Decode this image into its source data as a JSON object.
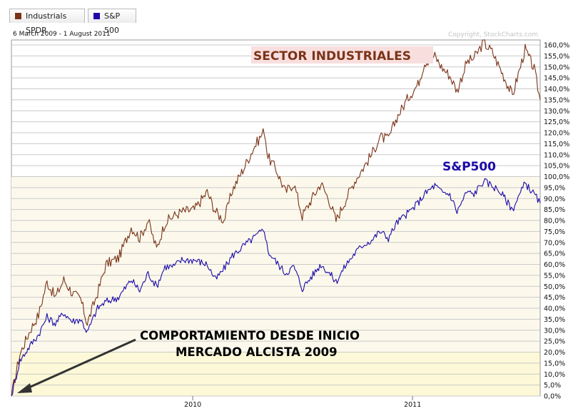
{
  "legend": [
    {
      "name": "Industrials SPDR",
      "color": "#7a3318"
    },
    {
      "name": "S&P 500",
      "color": "#1c0aa8"
    }
  ],
  "header": {
    "date_range": "6 March 2009 - 1 August 2011",
    "copyright": "Copyright, StockCharts.com"
  },
  "annotations": {
    "sector": "SECTOR INDUSTRIALES",
    "sp": "S&P500",
    "comportamiento_line1": "COMPORTAMIENTO DESDE INICIO",
    "comportamiento_line2": "MERCADO ALCISTA 2009"
  },
  "colors": {
    "industrials": "#7a3318",
    "sp500": "#1c0aa8",
    "highlight_band": "#fdf9d8",
    "upper_band": "#fcf9ec",
    "grid": "#c9c9c9",
    "sector_label_bg": "#f9dede",
    "arrow": "#333333"
  },
  "chart_data": {
    "type": "line",
    "x_tick_labels": [
      "2010",
      "2011"
    ],
    "y_tick_labels": [
      "0,0%",
      "5,0%",
      "10,0%",
      "15,0%",
      "20,0%",
      "25,0%",
      "30,0%",
      "35,0%",
      "40,0%",
      "45,0%",
      "50,0%",
      "55,0%",
      "60,0%",
      "65,0%",
      "70,0%",
      "75,0%",
      "80,0%",
      "85,0%",
      "90,0%",
      "95,0%",
      "100,0%",
      "105,0%",
      "110,0%",
      "115,0%",
      "120,0%",
      "125,0%",
      "130,0%",
      "135,0%",
      "140,0%",
      "145,0%",
      "150,0%",
      "155,0%",
      "160,0%"
    ],
    "ylim": [
      0,
      160
    ],
    "x_range": [
      "2009-03-06",
      "2011-08-01"
    ],
    "series": [
      {
        "name": "Industrials SPDR",
        "color": "#7a3318",
        "points": [
          [
            "2009-03-06",
            0
          ],
          [
            "2009-03-20",
            19
          ],
          [
            "2009-04-06",
            30
          ],
          [
            "2009-04-20",
            37
          ],
          [
            "2009-05-04",
            52
          ],
          [
            "2009-05-18",
            45
          ],
          [
            "2009-06-01",
            53
          ],
          [
            "2009-06-15",
            47
          ],
          [
            "2009-06-29",
            44
          ],
          [
            "2009-07-10",
            33
          ],
          [
            "2009-07-27",
            47
          ],
          [
            "2009-08-10",
            60
          ],
          [
            "2009-08-31",
            63
          ],
          [
            "2009-09-21",
            77
          ],
          [
            "2009-10-05",
            72
          ],
          [
            "2009-10-19",
            80
          ],
          [
            "2009-11-02",
            67
          ],
          [
            "2009-11-16",
            79
          ],
          [
            "2009-11-30",
            82
          ],
          [
            "2009-12-14",
            84
          ],
          [
            "2010-01-04",
            85
          ],
          [
            "2010-01-25",
            93
          ],
          [
            "2010-02-08",
            84
          ],
          [
            "2010-02-22",
            80
          ],
          [
            "2010-03-08",
            94
          ],
          [
            "2010-03-29",
            105
          ],
          [
            "2010-04-12",
            113
          ],
          [
            "2010-04-30",
            121
          ],
          [
            "2010-05-06",
            109
          ],
          [
            "2010-05-20",
            103
          ],
          [
            "2010-06-04",
            93
          ],
          [
            "2010-06-18",
            97
          ],
          [
            "2010-07-02",
            82
          ],
          [
            "2010-07-16",
            89
          ],
          [
            "2010-08-02",
            97
          ],
          [
            "2010-08-16",
            89
          ],
          [
            "2010-08-27",
            80
          ],
          [
            "2010-09-13",
            90
          ],
          [
            "2010-09-27",
            98
          ],
          [
            "2010-10-11",
            104
          ],
          [
            "2010-10-25",
            110
          ],
          [
            "2010-11-08",
            118
          ],
          [
            "2010-11-22",
            117
          ],
          [
            "2010-12-06",
            127
          ],
          [
            "2010-12-27",
            137
          ],
          [
            "2011-01-10",
            142
          ],
          [
            "2011-01-21",
            152
          ],
          [
            "2011-02-07",
            155
          ],
          [
            "2011-02-18",
            150
          ],
          [
            "2011-03-04",
            146
          ],
          [
            "2011-03-16",
            139
          ],
          [
            "2011-04-01",
            152
          ],
          [
            "2011-04-13",
            154
          ],
          [
            "2011-04-29",
            161
          ],
          [
            "2011-05-13",
            157
          ],
          [
            "2011-05-27",
            149
          ],
          [
            "2011-06-16",
            137
          ],
          [
            "2011-07-07",
            158
          ],
          [
            "2011-07-22",
            149
          ],
          [
            "2011-08-01",
            135
          ]
        ]
      },
      {
        "name": "S&P 500",
        "color": "#1c0aa8",
        "points": [
          [
            "2009-03-06",
            0
          ],
          [
            "2009-03-20",
            16
          ],
          [
            "2009-04-06",
            23
          ],
          [
            "2009-04-20",
            28
          ],
          [
            "2009-05-04",
            36
          ],
          [
            "2009-05-18",
            33
          ],
          [
            "2009-06-01",
            38
          ],
          [
            "2009-06-15",
            34
          ],
          [
            "2009-06-29",
            35
          ],
          [
            "2009-07-10",
            29
          ],
          [
            "2009-07-27",
            40
          ],
          [
            "2009-08-10",
            43
          ],
          [
            "2009-08-31",
            45
          ],
          [
            "2009-09-21",
            53
          ],
          [
            "2009-10-05",
            48
          ],
          [
            "2009-10-19",
            56
          ],
          [
            "2009-11-02",
            50
          ],
          [
            "2009-11-16",
            59
          ],
          [
            "2009-11-30",
            59
          ],
          [
            "2009-12-14",
            62
          ],
          [
            "2010-01-04",
            62
          ],
          [
            "2010-01-25",
            60
          ],
          [
            "2010-02-08",
            53
          ],
          [
            "2010-02-22",
            58
          ],
          [
            "2010-03-08",
            64
          ],
          [
            "2010-03-29",
            69
          ],
          [
            "2010-04-12",
            72
          ],
          [
            "2010-04-30",
            76
          ],
          [
            "2010-05-06",
            66
          ],
          [
            "2010-05-20",
            61
          ],
          [
            "2010-06-04",
            56
          ],
          [
            "2010-06-18",
            59
          ],
          [
            "2010-07-02",
            49
          ],
          [
            "2010-07-16",
            54
          ],
          [
            "2010-08-02",
            60
          ],
          [
            "2010-08-16",
            56
          ],
          [
            "2010-08-27",
            52
          ],
          [
            "2010-09-13",
            60
          ],
          [
            "2010-09-27",
            65
          ],
          [
            "2010-10-11",
            69
          ],
          [
            "2010-10-25",
            71
          ],
          [
            "2010-11-08",
            75
          ],
          [
            "2010-11-22",
            72
          ],
          [
            "2010-12-06",
            79
          ],
          [
            "2010-12-27",
            84
          ],
          [
            "2011-01-10",
            88
          ],
          [
            "2011-01-21",
            92
          ],
          [
            "2011-02-07",
            96
          ],
          [
            "2011-02-18",
            93
          ],
          [
            "2011-03-04",
            92
          ],
          [
            "2011-03-16",
            84
          ],
          [
            "2011-04-01",
            93
          ],
          [
            "2011-04-13",
            92
          ],
          [
            "2011-04-29",
            98
          ],
          [
            "2011-05-13",
            96
          ],
          [
            "2011-05-27",
            93
          ],
          [
            "2011-06-16",
            85
          ],
          [
            "2011-07-07",
            97
          ],
          [
            "2011-07-22",
            92
          ],
          [
            "2011-08-01",
            88
          ]
        ]
      }
    ]
  }
}
